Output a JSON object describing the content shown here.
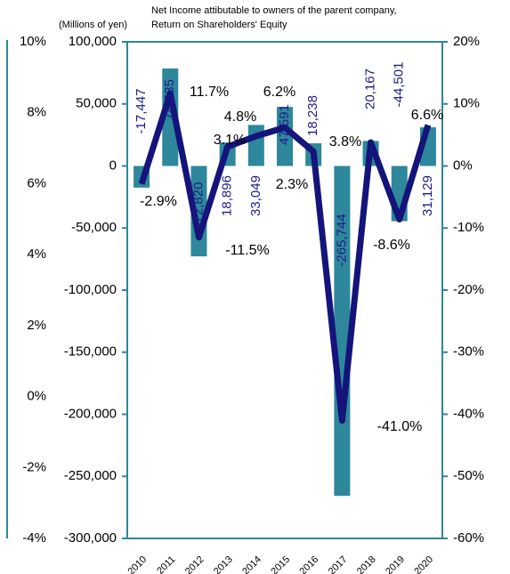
{
  "chart_data": {
    "type": "bar-line",
    "unit_label": "(Millions of yen)",
    "categories": [
      "2010",
      "2011",
      "2012",
      "2013",
      "2014",
      "2015",
      "2016",
      "2017",
      "2018",
      "2019",
      "2020"
    ],
    "series": [
      {
        "name": "Net Income attibutable to owners of the parent company,",
        "type": "bar",
        "color": "#2e879b",
        "label_color": "#1c1c8a",
        "values": [
          -17447,
          78535,
          -72820,
          18896,
          33049,
          47591,
          18238,
          -265744,
          20167,
          -44501,
          31129
        ],
        "value_labels": [
          "-17,447",
          "78,535",
          "-72,820",
          "18,896",
          "33,049",
          "47,591",
          "18,238",
          "-265,744",
          "20,167",
          "-44,501",
          "31,129"
        ]
      },
      {
        "name": "Return on Shareholders' Equity",
        "type": "line",
        "axis": "y2",
        "color": "#14147a",
        "values": [
          -2.9,
          11.7,
          -11.5,
          3.1,
          4.8,
          6.2,
          2.3,
          -41.0,
          3.8,
          -8.6,
          6.6
        ],
        "value_labels": [
          "-2.9%",
          "11.7%",
          "-11.5%",
          "3.1%",
          "4.8%",
          "6.2%",
          "2.3%",
          "-41.0%",
          "3.8%",
          "-8.6%",
          "6.6%"
        ]
      }
    ],
    "ylim": [
      -300000,
      100000
    ],
    "yticks": [
      {
        "value": 100000,
        "label": "100,000"
      },
      {
        "value": 50000,
        "label": "50,000"
      },
      0,
      {
        "value": -50000,
        "label": "-50,000"
      },
      {
        "value": -100000,
        "label": "-100,000"
      },
      {
        "value": -150000,
        "label": "-150,000"
      },
      {
        "value": -200000,
        "label": "-200,000"
      },
      {
        "value": -250000,
        "label": "-250,000"
      },
      {
        "value": -300000,
        "label": "-300,000"
      }
    ],
    "y2lim": [
      -60,
      20
    ],
    "y2ticks": [
      {
        "value": 20,
        "label": "20%"
      },
      {
        "value": 10,
        "label": "10%"
      },
      {
        "value": 0,
        "label": "0%"
      },
      {
        "value": -10,
        "label": "-10%"
      },
      {
        "value": -20,
        "label": "-20%"
      },
      {
        "value": -30,
        "label": "-30%"
      },
      {
        "value": -40,
        "label": "-40%"
      },
      {
        "value": -50,
        "label": "-50%"
      },
      {
        "value": -60,
        "label": "-60%"
      }
    ],
    "side_axis": {
      "ylim": [
        -4,
        10
      ],
      "yticks": [
        {
          "value": 10,
          "label": "10%"
        },
        {
          "value": 8,
          "label": "8%"
        },
        {
          "value": 6,
          "label": "6%"
        },
        {
          "value": 4,
          "label": "4%"
        },
        {
          "value": 2,
          "label": "2%"
        },
        {
          "value": 0,
          "label": "0%"
        },
        {
          "value": -2,
          "label": "-2%"
        },
        {
          "value": -4,
          "label": "-4%"
        }
      ]
    }
  }
}
